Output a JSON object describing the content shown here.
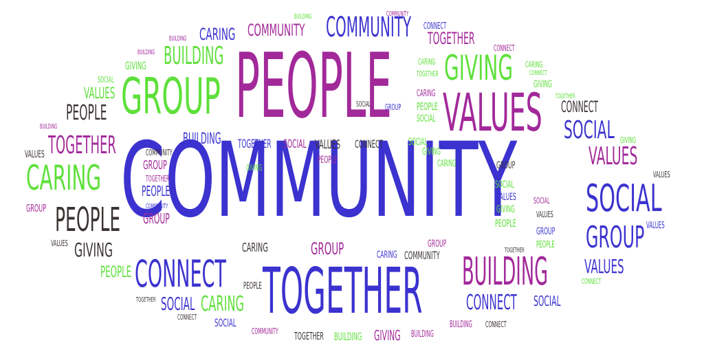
{
  "word_cloud": {
    "colors": {
      "purple": "#a2299a",
      "blue": "#3b32cf",
      "green": "#5ee03a",
      "dark": "#3c3333",
      "background": "#ffffff"
    },
    "words": [
      {
        "text": "COMMUNITY",
        "color": "blue"
      },
      {
        "text": "PEOPLE",
        "color": "purple"
      },
      {
        "text": "TOGETHER",
        "color": "blue"
      },
      {
        "text": "GROUP",
        "color": "green"
      },
      {
        "text": "VALUES",
        "color": "purple"
      },
      {
        "text": "SOCIAL",
        "color": "blue"
      },
      {
        "text": "BUILDING",
        "color": "purple"
      },
      {
        "text": "CONNECT",
        "color": "blue"
      },
      {
        "text": "CARING",
        "color": "green"
      },
      {
        "text": "PEOPLE",
        "color": "dark"
      },
      {
        "text": "GIVING",
        "color": "green"
      },
      {
        "text": "BUILDING",
        "color": "green"
      },
      {
        "text": "COMMUNITY",
        "color": "blue"
      },
      {
        "text": "COMMUNITY",
        "color": "purple"
      },
      {
        "text": "CARING",
        "color": "blue"
      },
      {
        "text": "TOGETHER",
        "color": "purple"
      },
      {
        "text": "GROUP",
        "color": "blue"
      },
      {
        "text": "VALUES",
        "color": "blue"
      },
      {
        "text": "CONNECT",
        "color": "blue"
      },
      {
        "text": "SOCIAL",
        "color": "blue"
      },
      {
        "text": "CARING",
        "color": "green"
      },
      {
        "text": "GIVING",
        "color": "dark"
      },
      {
        "text": "PEOPLE",
        "color": "dark"
      },
      {
        "text": "TOGETHER",
        "color": "purple"
      },
      {
        "text": "CONNECT",
        "color": "dark"
      },
      {
        "text": "SOCIAL",
        "color": "blue"
      },
      {
        "text": "GROUP",
        "color": "purple"
      },
      {
        "text": "CARING",
        "color": "dark"
      },
      {
        "text": "COMMUNITY",
        "color": "dark"
      },
      {
        "text": "VALUES",
        "color": "green"
      },
      {
        "text": "PEOPLE",
        "color": "green"
      },
      {
        "text": "SOCIAL",
        "color": "blue"
      },
      {
        "text": "BUILDING",
        "color": "blue"
      },
      {
        "text": "TOGETHER",
        "color": "blue"
      },
      {
        "text": "SOCIAL",
        "color": "purple"
      },
      {
        "text": "VALUES",
        "color": "dark"
      },
      {
        "text": "CONNECT",
        "color": "dark"
      },
      {
        "text": "COMMUNITY",
        "color": "dark"
      },
      {
        "text": "PEOPLE",
        "color": "purple"
      },
      {
        "text": "GIVING",
        "color": "green"
      },
      {
        "text": "GROUP",
        "color": "purple"
      },
      {
        "text": "TOGETHER",
        "color": "purple"
      },
      {
        "text": "PEOPLE",
        "color": "blue"
      },
      {
        "text": "COMMUNITY",
        "color": "blue"
      },
      {
        "text": "GROUP",
        "color": "purple"
      },
      {
        "text": "VALUES",
        "color": "dark"
      },
      {
        "text": "GROUP",
        "color": "purple"
      },
      {
        "text": "CARING",
        "color": "dark"
      },
      {
        "text": "CARING",
        "color": "blue"
      },
      {
        "text": "GROUP",
        "color": "purple"
      },
      {
        "text": "COMMUNITY",
        "color": "dark"
      },
      {
        "text": "PEOPLE",
        "color": "dark"
      },
      {
        "text": "TOGETHER",
        "color": "dark"
      },
      {
        "text": "CONNECT",
        "color": "dark"
      },
      {
        "text": "SOCIAL",
        "color": "blue"
      },
      {
        "text": "COMMUNITY",
        "color": "purple"
      },
      {
        "text": "TOGETHER",
        "color": "dark"
      },
      {
        "text": "BUILDING",
        "color": "green"
      },
      {
        "text": "GIVING",
        "color": "purple"
      },
      {
        "text": "BUILDING",
        "color": "purple"
      },
      {
        "text": "BUILDING",
        "color": "purple"
      },
      {
        "text": "CONNECT",
        "color": "dark"
      },
      {
        "text": "CONNECT",
        "color": "blue"
      },
      {
        "text": "SOCIAL",
        "color": "blue"
      },
      {
        "text": "TOGETHER",
        "color": "dark"
      },
      {
        "text": "PEOPLE",
        "color": "green"
      },
      {
        "text": "GROUP",
        "color": "blue"
      },
      {
        "text": "VALUES",
        "color": "blue"
      },
      {
        "text": "CONNECT",
        "color": "green"
      },
      {
        "text": "GROUP",
        "color": "blue"
      },
      {
        "text": "VALUES",
        "color": "blue"
      },
      {
        "text": "SOCIAL",
        "color": "blue"
      },
      {
        "text": "CARING",
        "color": "dark"
      },
      {
        "text": "CONNECT",
        "color": "dark"
      },
      {
        "text": "GROUP",
        "color": "dark"
      },
      {
        "text": "SOCIAL",
        "color": "green"
      },
      {
        "text": "VALUES",
        "color": "blue"
      },
      {
        "text": "GIVING",
        "color": "green"
      },
      {
        "text": "PEOPLE",
        "color": "green"
      },
      {
        "text": "SOCIAL",
        "color": "purple"
      },
      {
        "text": "VALUES",
        "color": "dark"
      },
      {
        "text": "GROUP",
        "color": "blue"
      },
      {
        "text": "PEOPLE",
        "color": "green"
      },
      {
        "text": "CARING",
        "color": "green"
      },
      {
        "text": "TOGETHER",
        "color": "green"
      },
      {
        "text": "CARING",
        "color": "green"
      },
      {
        "text": "PEOPLE",
        "color": "green"
      },
      {
        "text": "SOCIAL",
        "color": "green"
      },
      {
        "text": "SOCIAL",
        "color": "dark"
      },
      {
        "text": "GROUP",
        "color": "blue"
      },
      {
        "text": "CONNECT",
        "color": "purple"
      },
      {
        "text": "CARING",
        "color": "green"
      },
      {
        "text": "GIVING",
        "color": "green"
      },
      {
        "text": "CARING",
        "color": "green"
      },
      {
        "text": "TOGETHER",
        "color": "green"
      },
      {
        "text": "VALUES",
        "color": "green"
      },
      {
        "text": "GIVING",
        "color": "green"
      },
      {
        "text": "CONNECT",
        "color": "purple"
      },
      {
        "text": "COMMUNITY",
        "color": "purple"
      },
      {
        "text": "BUILDING",
        "color": "purple"
      },
      {
        "text": "BUILDING",
        "color": "purple"
      },
      {
        "text": "BUILDING",
        "color": "blue"
      },
      {
        "text": "CARING",
        "color": "green"
      },
      {
        "text": "GIVING",
        "color": "green"
      },
      {
        "text": "VALUES",
        "color": "dark"
      },
      {
        "text": "CARING",
        "color": "dark"
      },
      {
        "text": "SOCIAL",
        "color": "green"
      },
      {
        "text": "GIVING",
        "color": "green"
      },
      {
        "text": "GIVING",
        "color": "green"
      },
      {
        "text": "PEOPLE",
        "color": "green"
      },
      {
        "text": "GROUP",
        "color": "purple"
      },
      {
        "text": "PEOPLE",
        "color": "purple"
      },
      {
        "text": "GROUP",
        "color": "purple"
      },
      {
        "text": "PEOPLE",
        "color": "dark"
      },
      {
        "text": "COMMUNITY",
        "color": "purple"
      },
      {
        "text": "GIVING",
        "color": "purple"
      },
      {
        "text": "CONNECT",
        "color": "dark"
      },
      {
        "text": "BUILDING",
        "color": "purple"
      }
    ]
  }
}
